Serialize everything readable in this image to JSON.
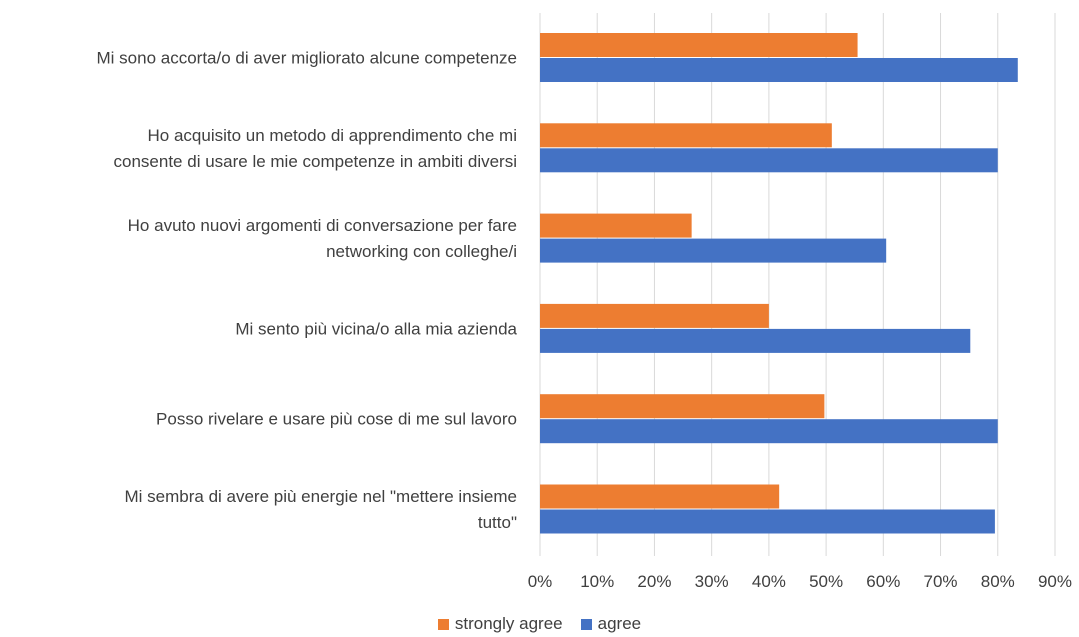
{
  "chart_data": {
    "type": "bar",
    "orientation": "horizontal",
    "categories": [
      [
        "Mi sono accorta/o di aver migliorato alcune competenze"
      ],
      [
        "Ho acquisito un metodo di apprendimento che mi",
        "consente di usare le mie competenze in ambiti diversi"
      ],
      [
        "Ho avuto nuovi argomenti di conversazione per fare",
        "networking con colleghe/i"
      ],
      [
        "Mi sento più vicina/o alla mia azienda"
      ],
      [
        "Posso rivelare e usare più cose di me sul lavoro"
      ],
      [
        "Mi sembra di avere più energie nel \"mettere insieme",
        "tutto\""
      ]
    ],
    "series": [
      {
        "name": "strongly agree",
        "color": "#ED7D31",
        "values": [
          0.555,
          0.51,
          0.265,
          0.4,
          0.497,
          0.418
        ]
      },
      {
        "name": "agree",
        "color": "#4472C4",
        "values": [
          0.835,
          0.8,
          0.605,
          0.752,
          0.8,
          0.795
        ]
      }
    ],
    "xlim": [
      0,
      0.9
    ],
    "x_ticks": [
      "0%",
      "10%",
      "20%",
      "30%",
      "40%",
      "50%",
      "60%",
      "70%",
      "80%",
      "90%"
    ],
    "grid": true,
    "legend_position": "bottom"
  }
}
